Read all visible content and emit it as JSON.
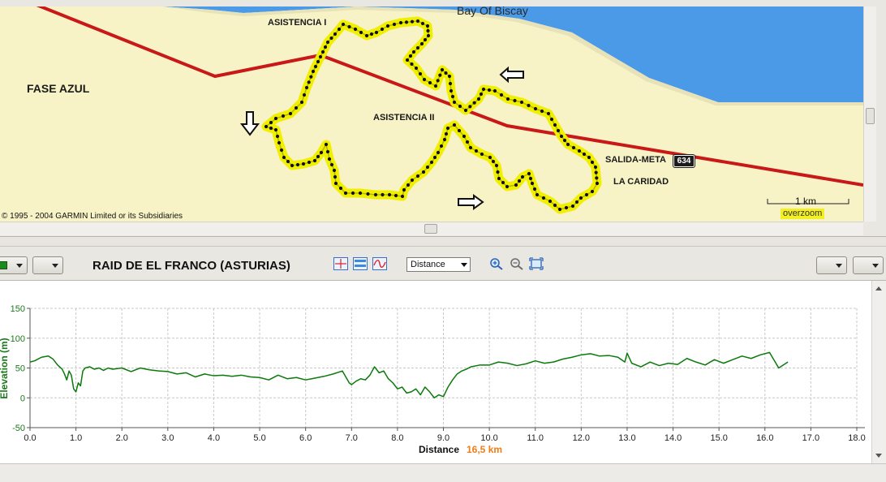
{
  "map": {
    "labels": {
      "fase": "FASE  AZUL",
      "sea": "Bay Of Biscay",
      "asistencia1": "ASISTENCIA I",
      "asistencia2": "ASISTENCIA II",
      "salida": "SALIDA-META",
      "caridad": "LA CARIDAD"
    },
    "road_shield": "634",
    "copyright": "© 1995 - 2004 GARMIN Limited or its Subsidiaries",
    "scale_label": "1 km",
    "overzoom": "overzoom",
    "colors": {
      "land": "#f7f3c6",
      "sea": "#4a9ae8",
      "road": "#d01818",
      "track_glow": "#f0f000",
      "track_dots": "#111111"
    },
    "icons": [
      "arrow-left-icon",
      "arrow-down-icon",
      "arrow-right-icon"
    ]
  },
  "toolbar": {
    "title": "RAID DE EL FRANCO (ASTURIAS)",
    "x_axis_mode": "Distance",
    "icons": [
      "crosshair-icon",
      "horizontal-lines-icon",
      "wave-icon",
      "zoom-in-icon",
      "zoom-out-icon",
      "zoom-fit-icon"
    ]
  },
  "chart_data": {
    "type": "line",
    "xlabel": "Distance",
    "ylabel": "Elevation (m)",
    "total_distance": "16,5 km",
    "xlim": [
      0,
      18
    ],
    "ylim": [
      -50,
      150
    ],
    "x_ticks": [
      "0.0",
      "1.0",
      "2.0",
      "3.0",
      "4.0",
      "5.0",
      "6.0",
      "7.0",
      "8.0",
      "9.0",
      "10.0",
      "11.0",
      "12.0",
      "13.0",
      "14.0",
      "15.0",
      "16.0",
      "17.0",
      "18.0"
    ],
    "y_ticks": [
      "150",
      "100",
      "50",
      "0",
      "-50"
    ],
    "grid": true,
    "line_color": "#0a7a0a",
    "series": [
      {
        "x": [
          0.0,
          0.1,
          0.25,
          0.4,
          0.5,
          0.6,
          0.7,
          0.75,
          0.8,
          0.85,
          0.9,
          0.95,
          1.0,
          1.05,
          1.1,
          1.15,
          1.2,
          1.3,
          1.4,
          1.5,
          1.6,
          1.7,
          1.8,
          2.0,
          2.2,
          2.4,
          2.6,
          2.8,
          3.0,
          3.2,
          3.4,
          3.6,
          3.8,
          4.0,
          4.2,
          4.4,
          4.6,
          4.8,
          5.0,
          5.2,
          5.4,
          5.6,
          5.8,
          6.0,
          6.2,
          6.4,
          6.6,
          6.8,
          6.95,
          7.0,
          7.1,
          7.2,
          7.3,
          7.4,
          7.5,
          7.6,
          7.7,
          7.8,
          7.9,
          8.0,
          8.1,
          8.2,
          8.3,
          8.4,
          8.5,
          8.6,
          8.7,
          8.8,
          8.9,
          9.0,
          9.1,
          9.2,
          9.3,
          9.4,
          9.5,
          9.6,
          9.8,
          10.0,
          10.2,
          10.4,
          10.6,
          10.8,
          11.0,
          11.2,
          11.4,
          11.6,
          11.8,
          12.0,
          12.2,
          12.4,
          12.6,
          12.8,
          12.95,
          13.0,
          13.1,
          13.3,
          13.5,
          13.7,
          13.9,
          14.1,
          14.3,
          14.5,
          14.7,
          14.9,
          15.1,
          15.3,
          15.5,
          15.7,
          15.9,
          16.1,
          16.3,
          16.5
        ],
        "y": [
          60,
          62,
          68,
          70,
          65,
          55,
          48,
          40,
          30,
          45,
          38,
          15,
          10,
          25,
          20,
          45,
          50,
          52,
          48,
          50,
          46,
          50,
          48,
          50,
          44,
          50,
          47,
          45,
          44,
          40,
          42,
          35,
          40,
          37,
          38,
          36,
          38,
          35,
          34,
          30,
          38,
          32,
          34,
          30,
          33,
          36,
          40,
          45,
          25,
          22,
          28,
          32,
          30,
          38,
          52,
          42,
          45,
          32,
          25,
          15,
          18,
          8,
          10,
          15,
          5,
          18,
          10,
          0,
          5,
          2,
          18,
          30,
          40,
          45,
          48,
          52,
          55,
          55,
          60,
          58,
          54,
          57,
          62,
          58,
          60,
          65,
          68,
          72,
          74,
          70,
          71,
          68,
          60,
          75,
          58,
          52,
          60,
          54,
          58,
          56,
          66,
          60,
          55,
          64,
          58,
          64,
          70,
          66,
          72,
          76,
          50,
          60
        ]
      }
    ]
  }
}
